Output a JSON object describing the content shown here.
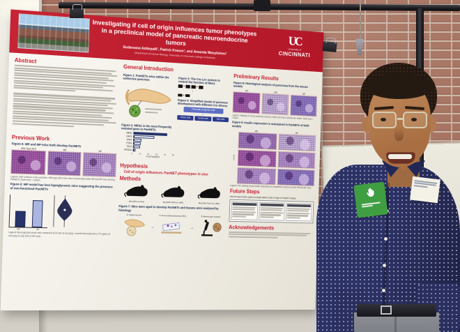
{
  "scene": {
    "setting": "Student standing beside a printed research poster hung from a black stand in front of a brick wall",
    "person": {
      "shirt": "navy polka-dot button-down",
      "accessories": [
        "glasses",
        "white handwritten name tag",
        "green hand-logo badge",
        "dark belt",
        "grey pants"
      ]
    }
  },
  "poster": {
    "accent_color": "#C41E30",
    "banner": {
      "title_line1": "Investigating if cell of origin influences tumor phenotypes",
      "title_line2": "in a preclinical model of pancreatic neuroendocrine tumors",
      "authors": "Sudarsana Addepalli¹, Patrick Krause¹, and Amanda Wasylishen¹",
      "affiliation": "Department of Cancer Biology, University of Cincinnati College of Medicine",
      "logo_monogram": "UC",
      "logo_line1": "University of",
      "logo_line2": "CINCINNATI"
    },
    "abstract": {
      "heading": "Abstract"
    },
    "general_introduction": {
      "heading": "General Introduction",
      "fig1_caption": "Figure 1: PanNETs arise within the endocrine pancreas",
      "fig2_caption": "Figure 2: MEN1 is the most frequently mutated gene in PanNETs",
      "fig2_chart": {
        "type": "bar",
        "orientation": "horizontal",
        "categories": [
          "MEN1",
          "DAXX",
          "ATRX",
          "PTEN",
          "TSC2",
          "PIK3CA"
        ],
        "values": [
          41,
          25,
          10,
          9,
          8,
          3
        ],
        "xlim": [
          0,
          50
        ],
        "ticks": [
          0,
          10,
          20,
          30,
          40,
          50
        ],
        "xlabel": "% of PanNETs"
      },
      "fig3_caption": "Figure 3: The Cre-Lox system to control the function of Men1",
      "fig4_caption": "Figure 4: Simplified model of pancreas development with different Cre drivers",
      "fig4_flow": {
        "root": "Pancreatic progenitor cells",
        "children": [
          "Acinar cells",
          "Ductal cells",
          "Islet cells"
        ]
      }
    },
    "previous_work": {
      "heading": "Previous Work",
      "fig5_caption": "Figure 5: MR and MP mice both develop PanNETs",
      "fig5_labels": [
        "Wild Type (WT)",
        "MR",
        "MP"
      ],
      "fig5_legend": "Legend: H&E sections of the pancreas. Wild type (WT) mice have normal islets while MR and MP mice develop PanNETs. Scale bars = 100μm.",
      "fig6_caption": "Figure 6: MP model has less hypoglycemic mice suggesting the presence of non-functional PanNETs",
      "fig6_chart": {
        "type": "bar",
        "categories": [
          "MR",
          "MP"
        ],
        "values": [
          45,
          80
        ],
        "ylim": [
          0,
          100
        ],
        "ylabel": "Blood glucose (mg/dL)",
        "colors": [
          "#27346b",
          "#aab6e2"
        ]
      },
      "fig6_violin": {
        "type": "violin",
        "ylabel": "Blood glucose (mg/dL)"
      },
      "fig6_legend": "Legend: Blood glucose levels were measured at 22 wks at necropsy. Lowered blood glucose (<70 mg/dL) at necropsy in only 15% of MP mice."
    },
    "hypothesis": {
      "heading": "Hypothesis",
      "text": "Cell of origin influences PanNET phenotypes in vivo"
    },
    "methods": {
      "heading": "Methods",
      "mice": [
        "Men1fl/fl (control)",
        "Men1fl/fl; RIP-Cre (MR)",
        "Men1fl/fl; Pdx1-Cre (MP)"
      ],
      "fig7_caption": "Figure 7: Mice were aged to develop PanNETs and tissues were analyzed by histology",
      "steps": [
        "① Organ harvest",
        "② Immunohistochemistry (IHC)",
        "③ Microscopic analysis"
      ]
    },
    "preliminary_results": {
      "heading": "Preliminary Results",
      "fig8_caption": "Figure 8: Histological analysis of pancreata from the mouse models",
      "fig8_labels": [
        "WT",
        "MR",
        "MP"
      ],
      "fig8_legend": "Legend: Staining of mouse pancreas sections; islets and tumor nodules are visible. Scale bars = 100μm.",
      "fig9_caption": "Figure 9: Insulin expression is maintained in PanNETs of both models",
      "fig9_col_headers": [
        "MR",
        "MP"
      ],
      "fig9_row_label": "Insulin",
      "fig9_legend": "Legend: IHC staining shows insulin expression is maintained in tumors of both MR and MP mice."
    },
    "future_steps": {
      "heading": "Future Steps",
      "intro": "Use the dual Cre/lox system to target distinct cells of origin in PanNET models."
    },
    "acknowledgements": {
      "heading": "Acknowledgements"
    }
  }
}
